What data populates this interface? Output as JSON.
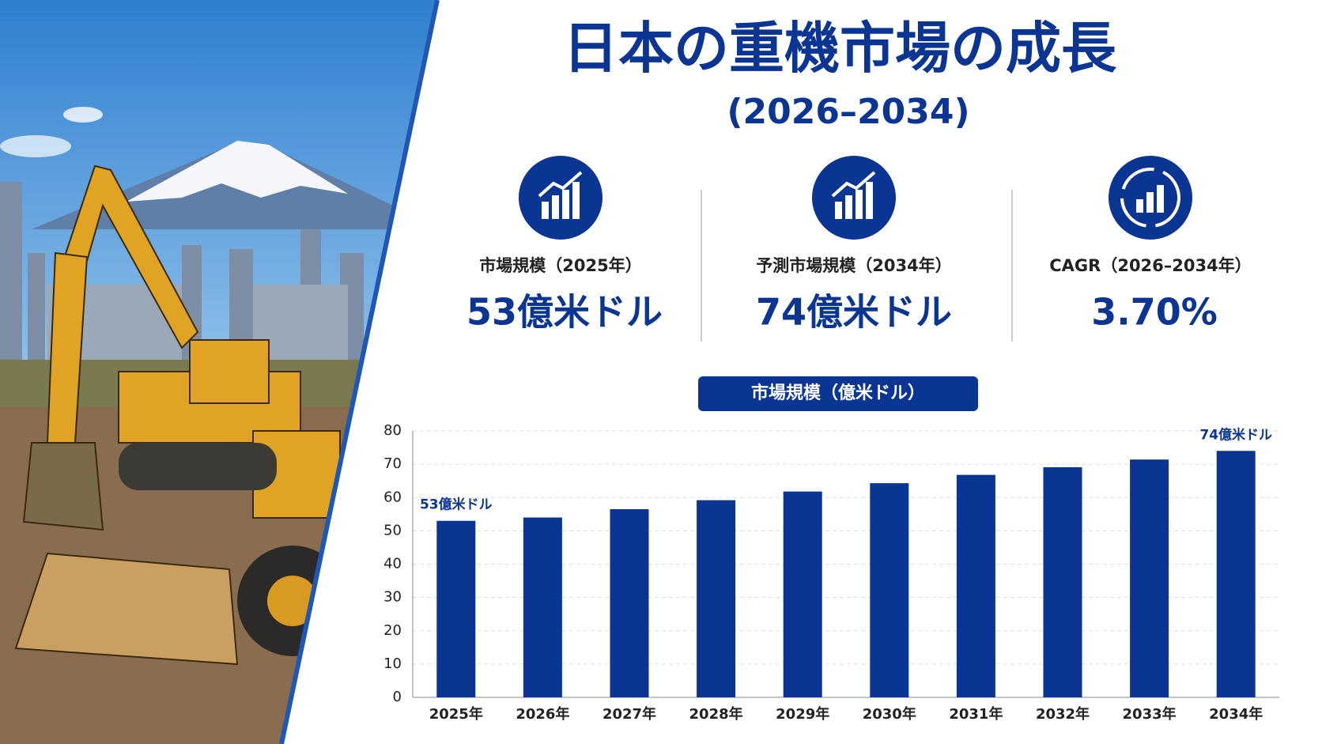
{
  "title": "日本の重機市場の成長",
  "subtitle": "(2026–2034)",
  "kpis": [
    {
      "label": "市場規模（2025年）",
      "value": "53億米ドル"
    },
    {
      "label": "予測市場規模（2034年）",
      "value": "74億米ドル"
    },
    {
      "label": "CAGR（2026–2034年）",
      "value": "3.70%"
    }
  ],
  "chart_data": {
    "type": "bar",
    "title": "市場規模（億米ドル）",
    "categories": [
      "2025年",
      "2026年",
      "2027年",
      "2028年",
      "2029年",
      "2030年",
      "2031年",
      "2032年",
      "2033年",
      "2034年"
    ],
    "values": [
      53,
      54,
      56.5,
      59.2,
      61.8,
      64.3,
      66.8,
      69.1,
      71.4,
      74
    ],
    "value_labels": [
      "53億米ドル",
      null,
      null,
      null,
      null,
      null,
      null,
      null,
      null,
      "74億米ドル"
    ],
    "color": "#0b3593",
    "ylim": [
      0,
      80
    ],
    "yticks": [
      0,
      10,
      20,
      30,
      40,
      50,
      60,
      70,
      80
    ],
    "grid": true
  }
}
